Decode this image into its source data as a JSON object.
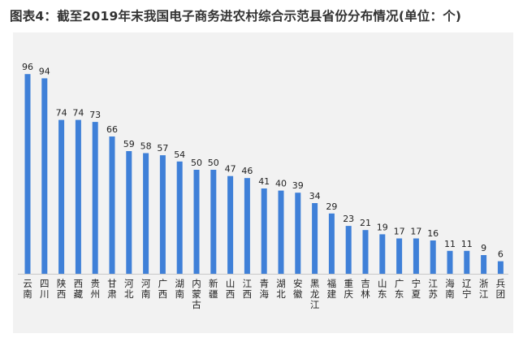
{
  "title": "图表4：截至2019年末我国电子商务进农村综合示范县省份分布情况(单位：个)",
  "colors": {
    "bar": "#3f80d8",
    "plot_background": "#f2f2f2",
    "axis": "#c8c8c8"
  },
  "chart_data": {
    "type": "bar",
    "title": "图表4：截至2019年末我国电子商务进农村综合示范县省份分布情况(单位：个)",
    "xlabel": "",
    "ylabel": "",
    "categories": [
      "云南",
      "四川",
      "陕西",
      "西藏",
      "贵州",
      "甘肃",
      "河北",
      "河南",
      "广西",
      "湖南",
      "内蒙古",
      "新疆",
      "山西",
      "江西",
      "青海",
      "湖北",
      "安徽",
      "黑龙江",
      "福建",
      "重庆",
      "吉林",
      "山东",
      "广东",
      "宁夏",
      "江苏",
      "海南",
      "辽宁",
      "浙江",
      "兵团"
    ],
    "values": [
      96,
      94,
      74,
      74,
      73,
      66,
      59,
      58,
      57,
      54,
      50,
      50,
      47,
      46,
      41,
      40,
      39,
      34,
      29,
      23,
      21,
      19,
      17,
      17,
      16,
      11,
      11,
      9,
      6
    ],
    "ylim": [
      0,
      100
    ],
    "grid": false,
    "legend": "none",
    "data_labels": true
  }
}
